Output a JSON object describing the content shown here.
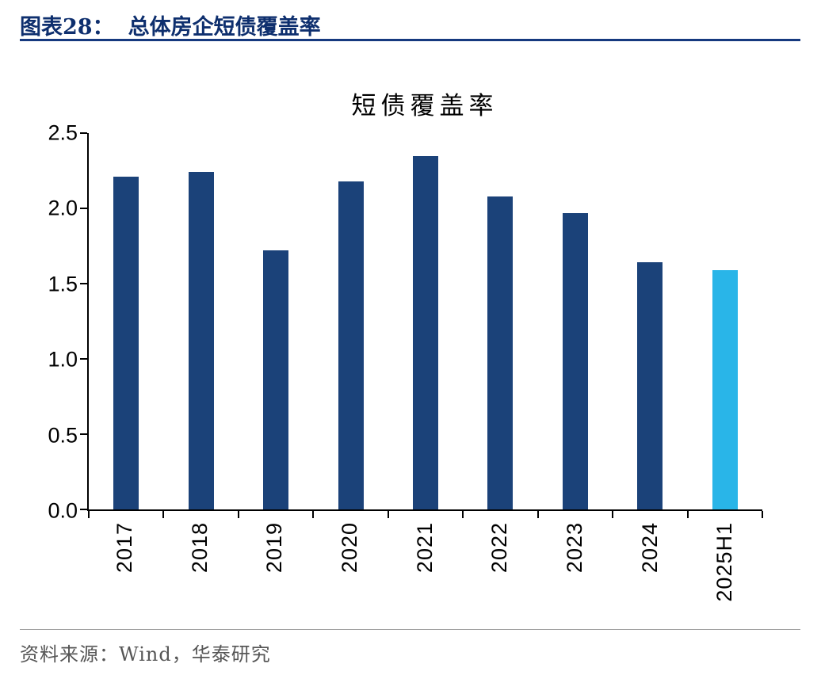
{
  "figure": {
    "number_label": "图表28：",
    "title": "总体房企短债覆盖率"
  },
  "footer": {
    "source": "资料来源：Wind，华泰研究"
  },
  "colors": {
    "header_navy": "#0E2F6E",
    "header_rule": "#16397F",
    "bar_navy": "#1B4279",
    "bar_highlight": "#29B5E8",
    "axis_black": "#000000",
    "source_gray": "#565656"
  },
  "chart_data": {
    "type": "bar",
    "title": "短债覆盖率",
    "categories": [
      "2017",
      "2018",
      "2019",
      "2020",
      "2021",
      "2022",
      "2023",
      "2024",
      "2025H1"
    ],
    "values": [
      2.21,
      2.24,
      1.72,
      2.18,
      2.35,
      2.08,
      1.97,
      1.64,
      1.59
    ],
    "xlabel": "",
    "ylabel": "",
    "ylim": [
      0,
      2.5
    ],
    "ytick_labels": [
      "0.0",
      "0.5",
      "1.0",
      "1.5",
      "2.0",
      "2.5"
    ],
    "grid": false,
    "legend": false,
    "highlight_index": 8
  }
}
